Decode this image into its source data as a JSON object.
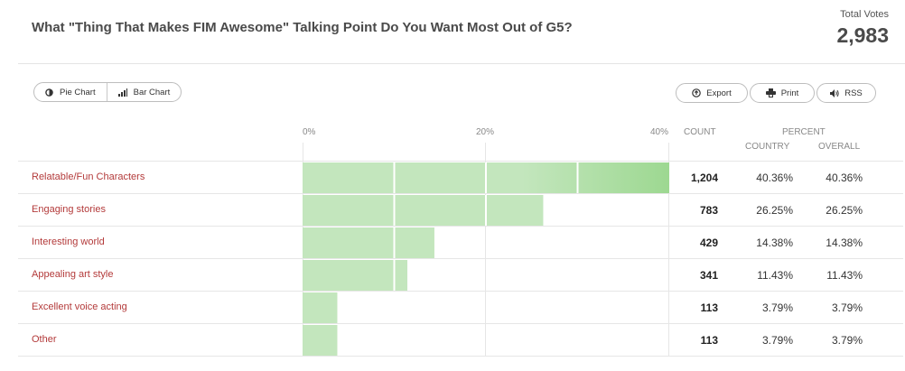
{
  "poll": {
    "question": "What \"Thing That Makes FIM Awesome\" Talking Point Do You Want Most Out of G5?",
    "total_votes_label": "Total Votes",
    "total_votes": "2,983"
  },
  "view_toggle": {
    "pie_label": "Pie Chart",
    "bar_label": "Bar Chart",
    "pie_icon": "pie-chart-icon",
    "bar_icon": "bar-chart-icon"
  },
  "actions": {
    "export_label": "Export",
    "print_label": "Print",
    "rss_label": "RSS",
    "export_icon": "export-icon",
    "print_icon": "printer-icon",
    "rss_icon": "rss-icon"
  },
  "columns": {
    "count": "COUNT",
    "percent": "PERCENT",
    "country": "COUNTRY",
    "overall": "OVERALL"
  },
  "colors": {
    "bar_light": "#c3e6bd",
    "bar_dark": "#9dd891",
    "label": "#b33a3a"
  },
  "chart_data": {
    "type": "bar",
    "orientation": "horizontal",
    "x_ticks": [
      "0%",
      "20%",
      "40%"
    ],
    "xlim": [
      0,
      40
    ],
    "grid": true,
    "categories": [
      "Relatable/Fun Characters",
      "Engaging stories",
      "Interesting world",
      "Appealing art style",
      "Excellent voice acting",
      "Other"
    ],
    "series": [
      {
        "values": [
          40.36,
          26.25,
          14.38,
          11.43,
          3.79,
          3.79
        ]
      }
    ],
    "counts": [
      "1,204",
      "783",
      "429",
      "341",
      "113",
      "113"
    ],
    "country_pct": [
      "40.36%",
      "26.25%",
      "14.38%",
      "11.43%",
      "3.79%",
      "3.79%"
    ],
    "overall_pct": [
      "40.36%",
      "26.25%",
      "14.38%",
      "11.43%",
      "3.79%",
      "3.79%"
    ]
  }
}
